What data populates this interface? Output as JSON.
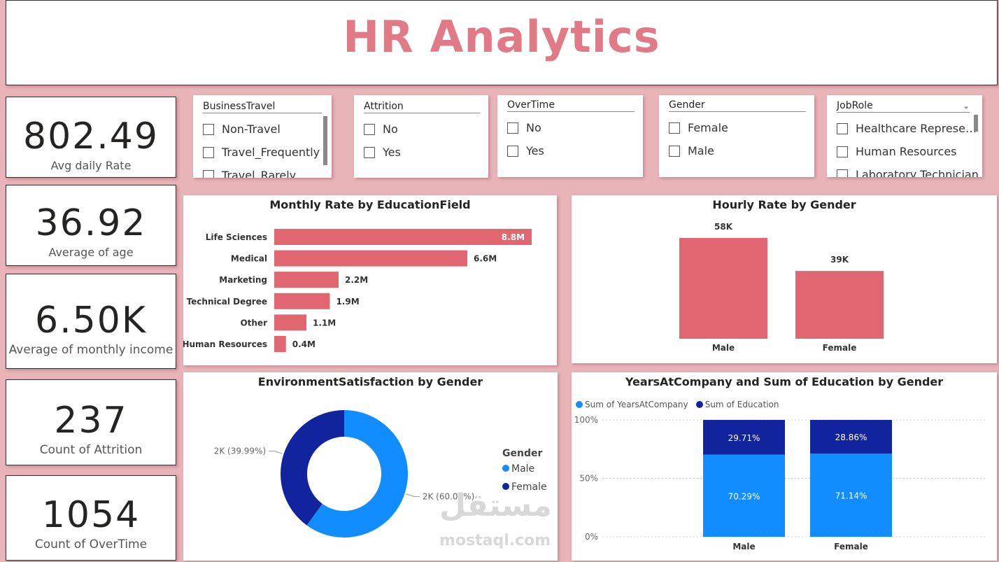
{
  "header": {
    "title": "HR Analytics"
  },
  "kpis": [
    {
      "value": "802.49",
      "label": "Avg daily Rate"
    },
    {
      "value": "36.92",
      "label": "Average of age"
    },
    {
      "value": "6.50K",
      "label": "Average of monthly income"
    },
    {
      "value": "237",
      "label": "Count of Attrition"
    },
    {
      "value": "1054",
      "label": "Count of OverTime"
    }
  ],
  "slicers": {
    "business_travel": {
      "title": "BusinessTravel",
      "options": [
        "Non-Travel",
        "Travel_Frequently",
        "Travel_Rarely"
      ]
    },
    "attrition": {
      "title": "Attrition",
      "options": [
        "No",
        "Yes"
      ]
    },
    "overtime": {
      "title": "OverTime",
      "options": [
        "No",
        "Yes"
      ]
    },
    "gender": {
      "title": "Gender",
      "options": [
        "Female",
        "Male"
      ]
    },
    "job_role": {
      "title": "JobRole",
      "options": [
        "Healthcare Represe…",
        "Human Resources",
        "Laboratory Technician"
      ]
    }
  },
  "chart_data": [
    {
      "id": "monthly_rate",
      "type": "bar",
      "orientation": "horizontal",
      "title": "Monthly Rate by EducationField",
      "categories": [
        "Life Sciences",
        "Medical",
        "Marketing",
        "Technical Degree",
        "Other",
        "Human Resources"
      ],
      "values": [
        8.8,
        6.6,
        2.2,
        1.9,
        1.1,
        0.4
      ],
      "labels": [
        "8.8M",
        "6.6M",
        "2.2M",
        "1.9M",
        "1.1M",
        "0.4M"
      ],
      "unit": "M",
      "color": "#e06672"
    },
    {
      "id": "hourly_rate",
      "type": "bar",
      "title": "Hourly Rate by Gender",
      "categories": [
        "Male",
        "Female"
      ],
      "values": [
        58,
        39
      ],
      "labels": [
        "58K",
        "39K"
      ],
      "unit": "K",
      "color": "#e06672"
    },
    {
      "id": "env_satisfaction",
      "type": "pie",
      "donut": true,
      "title": "EnvironmentSatisfaction by Gender",
      "legend_title": "Gender",
      "legend_position": "right",
      "slices": [
        {
          "name": "Male",
          "percent": 60.01,
          "label": "2K (60.01%)",
          "color": "#118dff"
        },
        {
          "name": "Female",
          "percent": 39.99,
          "label": "2K (39.99%)",
          "color": "#12239e"
        }
      ]
    },
    {
      "id": "years_education",
      "type": "bar",
      "stacked": "100%",
      "title": "YearsAtCompany and Sum of Education by Gender",
      "legend_position": "top-left",
      "categories": [
        "Male",
        "Female"
      ],
      "y_ticks": [
        "100%",
        "50%",
        "0%"
      ],
      "series": [
        {
          "name": "Sum of YearsAtCompany",
          "color": "#118dff",
          "values": [
            70.29,
            71.14
          ],
          "labels": [
            "70.29%",
            "71.14%"
          ]
        },
        {
          "name": "Sum of Education",
          "color": "#12239e",
          "values": [
            29.71,
            28.86
          ],
          "labels": [
            "29.71%",
            "28.86%"
          ]
        }
      ]
    }
  ],
  "watermark": {
    "arabic": "مستقل",
    "latin": "mostaql.com"
  }
}
